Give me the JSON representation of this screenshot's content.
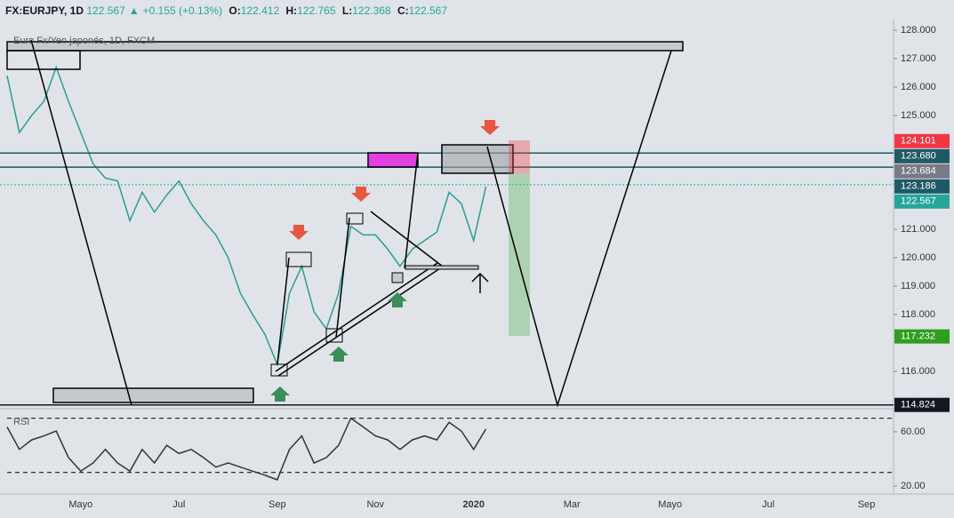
{
  "header": {
    "symbol": "FX:EURJPY, 1D",
    "last": "122.567",
    "change": "+0.155 (+0.13%)",
    "open_label": "O:",
    "open": "122.412",
    "high_label": "H:",
    "high": "122.765",
    "low_label": "L:",
    "low": "122.368",
    "close_label": "C:",
    "close": "122.567"
  },
  "chart_data": [
    {
      "type": "line",
      "title": "Euro Fx/Yen japonés, 1D, FXCM",
      "categories": [
        null,
        null,
        null,
        null,
        null,
        null,
        "Mayo",
        null,
        null,
        null,
        null,
        null,
        null,
        null,
        "Jul",
        null,
        null,
        null,
        null,
        null,
        null,
        null,
        "Sep",
        null,
        null,
        null,
        null,
        null,
        null,
        null,
        "Nov",
        null,
        null,
        null,
        null,
        null,
        null,
        null,
        "2020",
        null,
        null,
        null,
        null,
        null,
        null,
        null,
        "Mar",
        null,
        null,
        null,
        null,
        null,
        null,
        null,
        "Mayo",
        null,
        null,
        null,
        null,
        null,
        null,
        null,
        "Jul",
        null,
        null,
        null,
        null,
        null,
        null,
        null,
        "Sep",
        null,
        null
      ],
      "series": [
        {
          "name": "EURJPY",
          "color": "#2a9d94",
          "values": [
            126.4,
            124.4,
            125.0,
            125.5,
            126.7,
            125.5,
            124.4,
            123.3,
            122.8,
            122.7,
            121.3,
            122.3,
            121.6,
            122.2,
            122.7,
            121.9,
            121.3,
            120.8,
            120.0,
            118.75,
            118.0,
            117.3,
            116.25,
            118.75,
            119.7,
            118.1,
            117.5,
            118.75,
            121.1,
            120.8,
            120.8,
            120.3,
            119.7,
            120.3,
            120.6,
            120.9,
            122.3,
            121.9,
            120.6,
            122.5,
            null,
            null,
            null,
            null,
            null,
            null,
            null,
            null,
            null,
            null,
            null,
            null,
            null,
            null,
            null,
            null,
            null,
            null,
            null,
            null,
            null,
            null,
            null,
            null,
            null,
            null,
            null,
            null,
            null,
            null,
            null,
            null,
            null
          ]
        }
      ],
      "ylim": [
        114.69,
        128.375
      ],
      "yticks": [
        {
          "value": 128,
          "label": "128.000"
        },
        {
          "value": 127,
          "label": "127.000"
        },
        {
          "value": 126,
          "label": "126.000"
        },
        {
          "value": 125,
          "label": "125.000"
        },
        {
          "value": 121,
          "label": "121.000"
        },
        {
          "value": 120,
          "label": "120.000"
        },
        {
          "value": 119,
          "label": "119.000"
        },
        {
          "value": 118,
          "label": "118.000"
        },
        {
          "value": 116,
          "label": "116.000"
        }
      ],
      "price_labels": [
        {
          "value": 124.101,
          "label": "124.101",
          "color": "#f23645"
        },
        {
          "value": 123.68,
          "label": "123.680",
          "color": "#1e5a66",
          "line": "solid"
        },
        {
          "value": 123.684,
          "label": "123.684",
          "color": "#787b86"
        },
        {
          "value": 123.186,
          "label": "123.186",
          "color": "#1e5a66",
          "line": "solid"
        },
        {
          "value": 122.567,
          "label": "122.567",
          "color": "#26a69a",
          "line": "dotted"
        },
        {
          "value": 117.232,
          "label": "117.232",
          "color": "#2e9e1f"
        },
        {
          "value": 114.824,
          "label": "114.824",
          "color": "#131722",
          "line": "solid"
        }
      ]
    },
    {
      "type": "line",
      "title": "RSI",
      "series": [
        {
          "name": "RSI",
          "color": "#333333",
          "values": [
            63.6,
            47,
            54,
            57,
            60.6,
            41,
            31,
            37,
            47,
            37,
            31,
            47,
            37,
            50,
            44,
            47,
            41,
            34,
            37,
            34,
            31,
            28,
            24.6,
            47,
            57,
            37,
            41,
            50,
            70,
            63.6,
            57,
            54,
            47,
            54,
            57,
            54,
            67,
            60.6,
            47,
            62
          ]
        }
      ],
      "ylim": [
        16.1,
        75.7
      ],
      "yticks": [
        {
          "value": 60,
          "label": "60.00"
        },
        {
          "value": 20,
          "label": "20.00"
        }
      ],
      "levels": [
        70,
        30
      ]
    }
  ]
}
